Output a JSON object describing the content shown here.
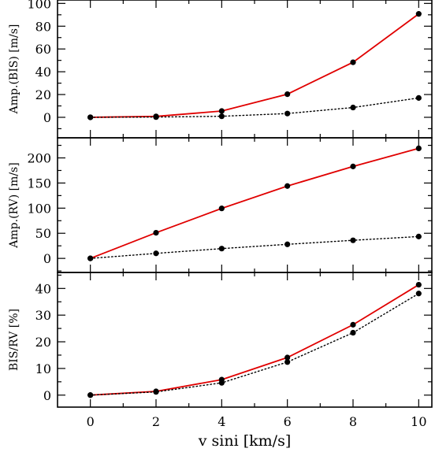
{
  "chart_data": {
    "type": "line",
    "shared_x": {
      "label": "v sini [km/s]",
      "range": [
        -1,
        10.4
      ],
      "ticks": [
        0,
        2,
        4,
        6,
        8,
        10
      ]
    },
    "colors": {
      "red_series": "#e00000",
      "dotted_series": "#000000",
      "marker": "#000000"
    },
    "panels": [
      {
        "ylabel": "Amp.(BIS) [m/s]",
        "ylim": [
          -18,
          103
        ],
        "yticks": [
          0,
          20,
          40,
          60,
          80,
          100
        ],
        "x": [
          0,
          2,
          4,
          6,
          8,
          10
        ],
        "series": [
          {
            "style": "solid-red",
            "values": [
              0,
              0.8,
              5.5,
              20.3,
              48.3,
              90.8
            ]
          },
          {
            "style": "dotted-black",
            "values": [
              0,
              0.2,
              0.9,
              3.3,
              8.6,
              17.0
            ]
          }
        ]
      },
      {
        "ylabel": "Amp.(RV) [m/s]",
        "ylim": [
          -28,
          240
        ],
        "yticks": [
          0,
          50,
          100,
          150,
          200
        ],
        "x": [
          0,
          2,
          4,
          6,
          8,
          10
        ],
        "series": [
          {
            "style": "solid-red",
            "values": [
              0,
              51,
              99.5,
              144,
              183,
              219
            ]
          },
          {
            "style": "dotted-black",
            "values": [
              0,
              10,
              19.5,
              28,
              36,
              43.5
            ]
          }
        ]
      },
      {
        "ylabel": "BIS/RV [%]",
        "ylim": [
          -4.5,
          46
        ],
        "yticks": [
          0,
          10,
          20,
          30,
          40
        ],
        "x": [
          0,
          2,
          4,
          6,
          8,
          10
        ],
        "series": [
          {
            "style": "solid-red",
            "values": [
              0,
              1.4,
              5.8,
              14.1,
              26.4,
              41.4
            ]
          },
          {
            "style": "dotted-black",
            "values": [
              0,
              1.2,
              4.6,
              12.4,
              23.4,
              38.1
            ]
          }
        ]
      }
    ]
  }
}
